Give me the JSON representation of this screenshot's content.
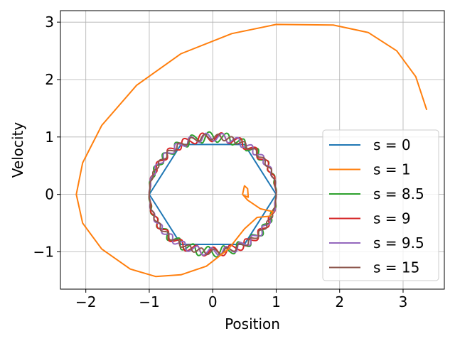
{
  "chart_data": {
    "type": "line",
    "title": "",
    "xlabel": "Position",
    "ylabel": "Velocity",
    "xlim": [
      -2.4,
      3.65
    ],
    "ylim": [
      -1.65,
      3.2
    ],
    "xticks": [
      {
        "value": -2,
        "label": "−2"
      },
      {
        "value": -1,
        "label": "−1"
      },
      {
        "value": 0,
        "label": "0"
      },
      {
        "value": 1,
        "label": "1"
      },
      {
        "value": 2,
        "label": "2"
      },
      {
        "value": 3,
        "label": "3"
      }
    ],
    "yticks": [
      {
        "value": -1,
        "label": "−1"
      },
      {
        "value": 0,
        "label": "0"
      },
      {
        "value": 1,
        "label": "1"
      },
      {
        "value": 2,
        "label": "2"
      },
      {
        "value": 3,
        "label": "3"
      }
    ],
    "grid": true,
    "legend_position": "lower-right",
    "series": [
      {
        "name": "s = 0",
        "color": "#1f77b4",
        "points": [
          [
            1,
            0
          ],
          [
            0.5,
            0.87
          ],
          [
            -0.5,
            0.87
          ],
          [
            -1,
            0
          ],
          [
            -0.5,
            -0.87
          ],
          [
            0.5,
            -0.87
          ],
          [
            1,
            0
          ]
        ]
      },
      {
        "name": "s = 1",
        "color": "#ff7f0e",
        "points": [
          [
            3.37,
            1.48
          ],
          [
            3.2,
            2.05
          ],
          [
            2.9,
            2.5
          ],
          [
            2.45,
            2.82
          ],
          [
            1.9,
            2.95
          ],
          [
            1.0,
            2.96
          ],
          [
            0.3,
            2.8
          ],
          [
            -0.5,
            2.45
          ],
          [
            -1.2,
            1.9
          ],
          [
            -1.75,
            1.2
          ],
          [
            -2.05,
            0.55
          ],
          [
            -2.15,
            0.0
          ],
          [
            -2.05,
            -0.5
          ],
          [
            -1.75,
            -0.95
          ],
          [
            -1.3,
            -1.3
          ],
          [
            -0.9,
            -1.43
          ],
          [
            -0.5,
            -1.4
          ],
          [
            -0.1,
            -1.25
          ],
          [
            0.25,
            -0.95
          ],
          [
            0.5,
            -0.6
          ],
          [
            0.7,
            -0.4
          ],
          [
            0.9,
            -0.38
          ],
          [
            0.95,
            -0.3
          ],
          [
            0.75,
            -0.25
          ],
          [
            0.55,
            -0.1
          ],
          [
            0.47,
            0.0
          ],
          [
            0.5,
            0.15
          ],
          [
            0.55,
            0.1
          ],
          [
            0.56,
            -0.05
          ],
          [
            0.5,
            -0.02
          ]
        ]
      },
      {
        "name": "s = 8.5",
        "color": "#2ca02c",
        "amplitude": 0.09,
        "frequency": 24,
        "phase": 0.3,
        "points": []
      },
      {
        "name": "s = 9",
        "color": "#d62728",
        "amplitude": 0.08,
        "frequency": 22,
        "phase": 1.3,
        "points": []
      },
      {
        "name": "s = 9.5",
        "color": "#9467bd",
        "amplitude": 0.07,
        "frequency": 26,
        "phase": 2.1,
        "points": []
      },
      {
        "name": "s = 15",
        "color": "#8c564b",
        "amplitude": 0.05,
        "frequency": 30,
        "phase": 0.9,
        "points": []
      }
    ]
  }
}
